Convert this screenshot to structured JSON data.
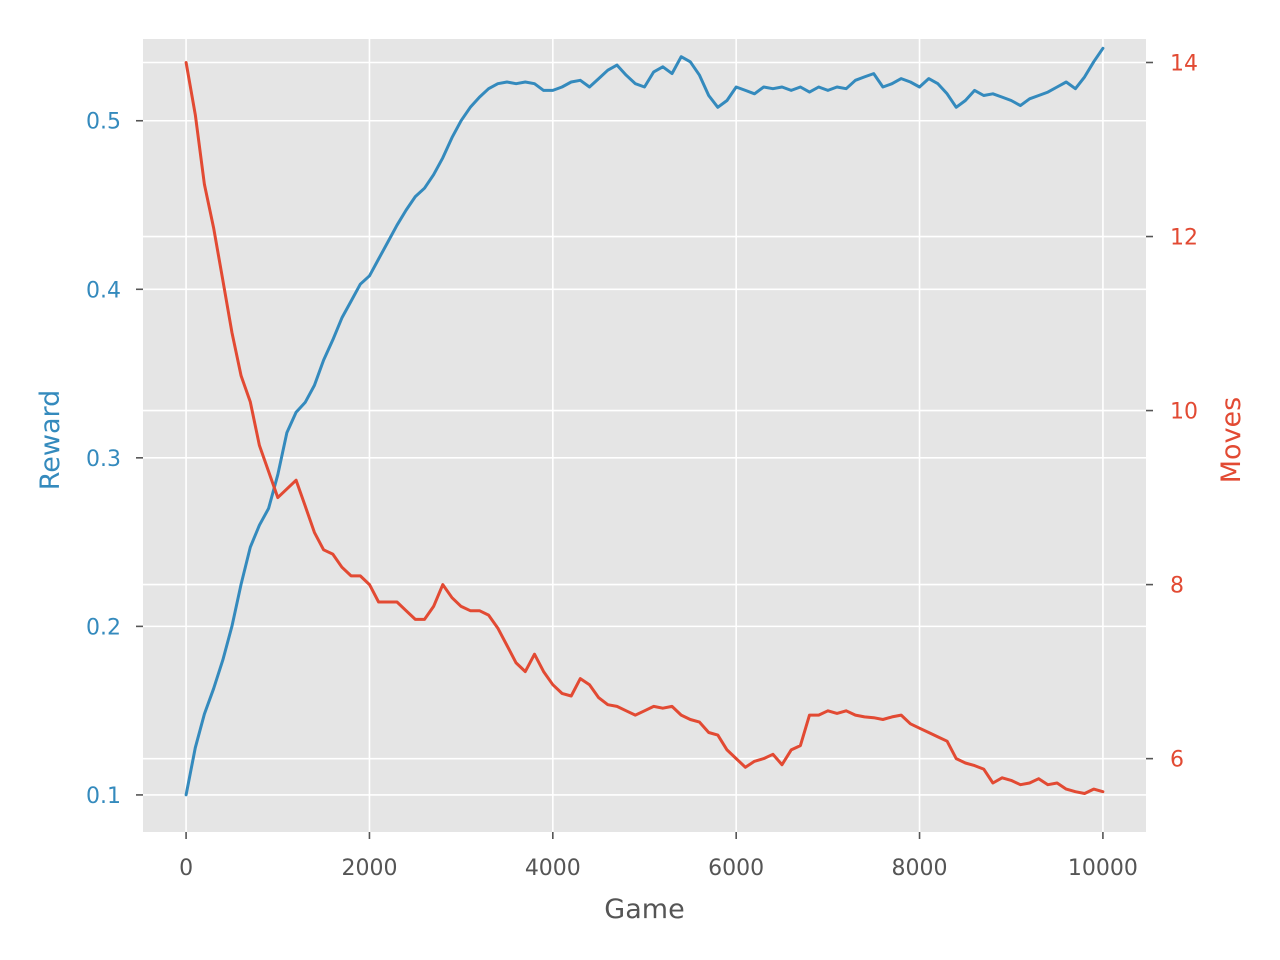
{
  "chart_data": {
    "type": "line",
    "title": "",
    "background_color": "#e5e5e5",
    "grid": true,
    "xlabel": "Game",
    "xlim": [
      -470,
      10470
    ],
    "x_ticks": [
      0,
      2000,
      4000,
      6000,
      8000,
      10000
    ],
    "x_tick_labels": [
      "0",
      "2000",
      "4000",
      "6000",
      "8000",
      "10000"
    ],
    "axes": {
      "left": {
        "label": "Reward",
        "color": "#348abd",
        "ylim": [
          0.078,
          0.5485
        ],
        "ticks": [
          0.1,
          0.2,
          0.3,
          0.4,
          0.5
        ],
        "tick_labels": [
          "0.1",
          "0.2",
          "0.3",
          "0.4",
          "0.5"
        ]
      },
      "right": {
        "label": "Moves",
        "color": "#e24a33",
        "ylim": [
          5.157,
          14.27
        ],
        "ticks": [
          6,
          8,
          10,
          12,
          14
        ],
        "tick_labels": [
          "6",
          "8",
          "10",
          "12",
          "14"
        ]
      }
    },
    "series": [
      {
        "name": "Reward",
        "axis": "left",
        "color": "#348abd",
        "x": [
          0,
          100,
          200,
          300,
          400,
          500,
          600,
          700,
          800,
          900,
          1000,
          1100,
          1200,
          1300,
          1400,
          1500,
          1600,
          1700,
          1800,
          1900,
          2000,
          2100,
          2200,
          2300,
          2400,
          2500,
          2600,
          2700,
          2800,
          2900,
          3000,
          3100,
          3200,
          3300,
          3400,
          3500,
          3600,
          3700,
          3800,
          3900,
          4000,
          4100,
          4200,
          4300,
          4400,
          4500,
          4600,
          4700,
          4800,
          4900,
          5000,
          5100,
          5200,
          5300,
          5400,
          5500,
          5600,
          5700,
          5800,
          5900,
          6000,
          6100,
          6200,
          6300,
          6400,
          6500,
          6600,
          6700,
          6800,
          6900,
          7000,
          7100,
          7200,
          7300,
          7400,
          7500,
          7600,
          7700,
          7800,
          7900,
          8000,
          8100,
          8200,
          8300,
          8400,
          8500,
          8600,
          8700,
          8800,
          8900,
          9000,
          9100,
          9200,
          9300,
          9400,
          9500,
          9600,
          9700,
          9800,
          9900,
          10000
        ],
        "values": [
          0.1,
          0.128,
          0.148,
          0.163,
          0.18,
          0.2,
          0.225,
          0.247,
          0.26,
          0.27,
          0.29,
          0.315,
          0.327,
          0.333,
          0.343,
          0.358,
          0.37,
          0.383,
          0.393,
          0.403,
          0.408,
          0.418,
          0.428,
          0.438,
          0.447,
          0.455,
          0.46,
          0.468,
          0.478,
          0.49,
          0.5,
          0.508,
          0.514,
          0.519,
          0.522,
          0.523,
          0.522,
          0.523,
          0.522,
          0.518,
          0.518,
          0.52,
          0.523,
          0.524,
          0.52,
          0.525,
          0.53,
          0.533,
          0.527,
          0.522,
          0.52,
          0.529,
          0.532,
          0.528,
          0.538,
          0.535,
          0.527,
          0.515,
          0.508,
          0.512,
          0.52,
          0.518,
          0.516,
          0.52,
          0.519,
          0.52,
          0.518,
          0.52,
          0.517,
          0.52,
          0.518,
          0.52,
          0.519,
          0.524,
          0.526,
          0.528,
          0.52,
          0.522,
          0.525,
          0.523,
          0.52,
          0.525,
          0.522,
          0.516,
          0.508,
          0.512,
          0.518,
          0.515,
          0.516,
          0.514,
          0.512,
          0.509,
          0.513,
          0.515,
          0.517,
          0.52,
          0.523,
          0.519,
          0.526,
          0.535,
          0.543
        ]
      },
      {
        "name": "Moves",
        "axis": "right",
        "color": "#e24a33",
        "x": [
          0,
          100,
          200,
          300,
          400,
          500,
          600,
          700,
          800,
          900,
          1000,
          1100,
          1200,
          1300,
          1400,
          1500,
          1600,
          1700,
          1800,
          1900,
          2000,
          2100,
          2200,
          2300,
          2400,
          2500,
          2600,
          2700,
          2800,
          2900,
          3000,
          3100,
          3200,
          3300,
          3400,
          3500,
          3600,
          3700,
          3800,
          3900,
          4000,
          4100,
          4200,
          4300,
          4400,
          4500,
          4600,
          4700,
          4800,
          4900,
          5000,
          5100,
          5200,
          5300,
          5400,
          5500,
          5600,
          5700,
          5800,
          5900,
          6000,
          6100,
          6200,
          6300,
          6400,
          6500,
          6600,
          6700,
          6800,
          6900,
          7000,
          7100,
          7200,
          7300,
          7400,
          7500,
          7600,
          7700,
          7800,
          7900,
          8000,
          8100,
          8200,
          8300,
          8400,
          8500,
          8600,
          8700,
          8800,
          8900,
          9000,
          9100,
          9200,
          9300,
          9400,
          9500,
          9600,
          9700,
          9800,
          9900,
          10000
        ],
        "values": [
          14.0,
          13.4,
          12.6,
          12.1,
          11.5,
          10.9,
          10.4,
          10.1,
          9.6,
          9.3,
          9.0,
          9.1,
          9.2,
          8.9,
          8.6,
          8.4,
          8.35,
          8.2,
          8.1,
          8.1,
          8.0,
          7.8,
          7.8,
          7.8,
          7.7,
          7.6,
          7.6,
          7.75,
          8.0,
          7.85,
          7.75,
          7.7,
          7.7,
          7.65,
          7.5,
          7.3,
          7.1,
          7.0,
          7.2,
          7.0,
          6.85,
          6.75,
          6.72,
          6.92,
          6.85,
          6.7,
          6.62,
          6.6,
          6.55,
          6.5,
          6.55,
          6.6,
          6.58,
          6.6,
          6.5,
          6.45,
          6.42,
          6.3,
          6.27,
          6.1,
          6.0,
          5.9,
          5.97,
          6.0,
          6.05,
          5.93,
          6.1,
          6.15,
          6.5,
          6.5,
          6.55,
          6.52,
          6.55,
          6.5,
          6.48,
          6.47,
          6.45,
          6.48,
          6.5,
          6.4,
          6.35,
          6.3,
          6.25,
          6.2,
          6.0,
          5.95,
          5.92,
          5.88,
          5.72,
          5.78,
          5.75,
          5.7,
          5.72,
          5.77,
          5.7,
          5.72,
          5.65,
          5.62,
          5.6,
          5.65,
          5.62
        ]
      }
    ]
  }
}
